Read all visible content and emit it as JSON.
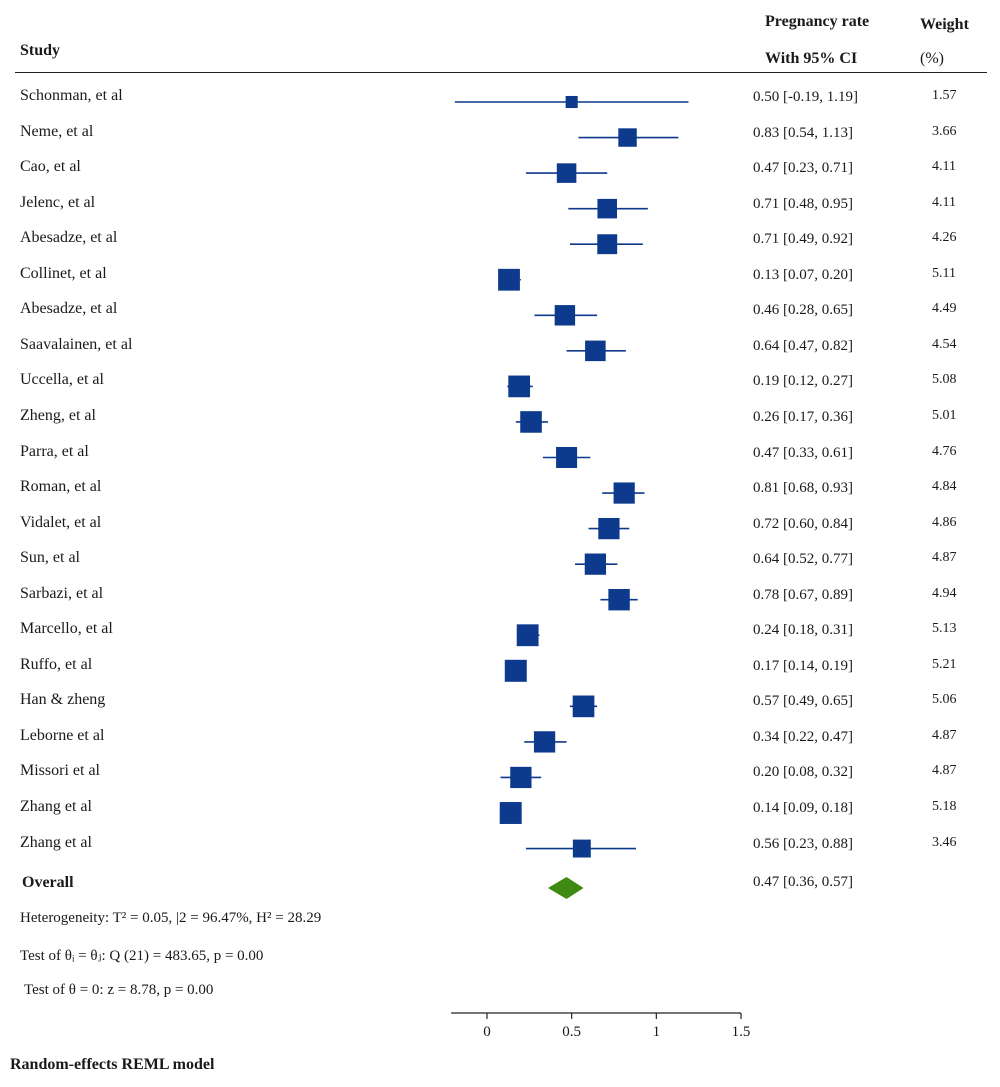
{
  "header": {
    "study": "Study",
    "rate": "Pregnancy rate",
    "ci": "With 95% CI",
    "weight": "Weight",
    "weight_unit": "(%)"
  },
  "rows": [
    {
      "study": "Schonman, et al",
      "est": "0.50 [-0.19, 1.19]",
      "weight": "1.57"
    },
    {
      "study": "Neme, et al",
      "est": "0.83 [0.54, 1.13]",
      "weight": "3.66"
    },
    {
      "study": "Cao, et al",
      "est": "0.47 [0.23, 0.71]",
      "weight": "4.11"
    },
    {
      "study": "Jelenc, et al",
      "est": "0.71 [0.48, 0.95]",
      "weight": "4.11"
    },
    {
      "study": "Abesadze, et al",
      "est": "0.71 [0.49, 0.92]",
      "weight": "4.26"
    },
    {
      "study": "Collinet, et al",
      "est": "0.13 [0.07, 0.20]",
      "weight": "5.11"
    },
    {
      "study": "Abesadze, et al",
      "est": "0.46 [0.28, 0.65]",
      "weight": "4.49"
    },
    {
      "study": "Saavalainen, et al",
      "est": "0.64 [0.47, 0.82]",
      "weight": "4.54"
    },
    {
      "study": "Uccella, et al",
      "est": "0.19 [0.12, 0.27]",
      "weight": "5.08"
    },
    {
      "study": "Zheng, et al",
      "est": "0.26 [0.17, 0.36]",
      "weight": "5.01"
    },
    {
      "study": "Parra, et al",
      "est": "0.47 [0.33, 0.61]",
      "weight": "4.76"
    },
    {
      "study": "Roman, et al",
      "est": "0.81 [0.68, 0.93]",
      "weight": "4.84"
    },
    {
      "study": "Vidalet, et al",
      "est": "0.72 [0.60, 0.84]",
      "weight": "4.86"
    },
    {
      "study": "Sun, et al",
      "est": "0.64 [0.52, 0.77]",
      "weight": "4.87"
    },
    {
      "study": "Sarbazi, et al",
      "est": "0.78 [0.67, 0.89]",
      "weight": "4.94"
    },
    {
      "study": "Marcello, et al",
      "est": "0.24 [0.18, 0.31]",
      "weight": "5.13"
    },
    {
      "study": "Ruffo, et al",
      "est": "0.17 [0.14, 0.19]",
      "weight": "5.21"
    },
    {
      "study": "Han & zheng",
      "est": "0.57 [0.49, 0.65]",
      "weight": "5.06"
    },
    {
      "study": "Leborne et al",
      "est": "0.34 [0.22, 0.47]",
      "weight": "4.87"
    },
    {
      "study": "Missori et al",
      "est": "0.20 [0.08, 0.32]",
      "weight": "4.87"
    },
    {
      "study": "Zhang et al",
      "est": "0.14 [0.09, 0.18]",
      "weight": "5.18"
    },
    {
      "study": "Zhang et al",
      "est": "0.56 [0.23, 0.88]",
      "weight": "3.46"
    }
  ],
  "overall": {
    "label": "Overall",
    "est": "0.47 [0.36, 0.57]"
  },
  "stats": {
    "heterogeneity": "Heterogeneity: T² = 0.05, |2 = 96.47%, H² = 28.29",
    "q_test": "Test of θᵢ = θⱼ: Q (21) = 483.65, p = 0.00",
    "z_test": "Test of θ = 0: z = 8.78, p = 0.00"
  },
  "footer": "Random-effects REML model",
  "colors": {
    "study_marker": "#0d3a8c",
    "overall_diamond": "#3f8a12",
    "axis": "#222222"
  },
  "chart_data": {
    "type": "forest",
    "xlim": [
      -0.2,
      1.5
    ],
    "xticks": [
      0,
      0.5,
      1,
      1.5
    ],
    "xtick_labels": [
      "0",
      "0.5",
      "1",
      "1.5"
    ],
    "studies": [
      {
        "name": "Schonman, et al",
        "estimate": 0.5,
        "lower": -0.19,
        "upper": 1.19,
        "weight": 1.57
      },
      {
        "name": "Neme, et al",
        "estimate": 0.83,
        "lower": 0.54,
        "upper": 1.13,
        "weight": 3.66
      },
      {
        "name": "Cao, et al",
        "estimate": 0.47,
        "lower": 0.23,
        "upper": 0.71,
        "weight": 4.11
      },
      {
        "name": "Jelenc, et al",
        "estimate": 0.71,
        "lower": 0.48,
        "upper": 0.95,
        "weight": 4.11
      },
      {
        "name": "Abesadze, et al",
        "estimate": 0.71,
        "lower": 0.49,
        "upper": 0.92,
        "weight": 4.26
      },
      {
        "name": "Collinet, et al",
        "estimate": 0.13,
        "lower": 0.07,
        "upper": 0.2,
        "weight": 5.11
      },
      {
        "name": "Abesadze, et al",
        "estimate": 0.46,
        "lower": 0.28,
        "upper": 0.65,
        "weight": 4.49
      },
      {
        "name": "Saavalainen, et al",
        "estimate": 0.64,
        "lower": 0.47,
        "upper": 0.82,
        "weight": 4.54
      },
      {
        "name": "Uccella, et al",
        "estimate": 0.19,
        "lower": 0.12,
        "upper": 0.27,
        "weight": 5.08
      },
      {
        "name": "Zheng, et al",
        "estimate": 0.26,
        "lower": 0.17,
        "upper": 0.36,
        "weight": 5.01
      },
      {
        "name": "Parra, et al",
        "estimate": 0.47,
        "lower": 0.33,
        "upper": 0.61,
        "weight": 4.76
      },
      {
        "name": "Roman, et al",
        "estimate": 0.81,
        "lower": 0.68,
        "upper": 0.93,
        "weight": 4.84
      },
      {
        "name": "Vidalet, et al",
        "estimate": 0.72,
        "lower": 0.6,
        "upper": 0.84,
        "weight": 4.86
      },
      {
        "name": "Sun, et al",
        "estimate": 0.64,
        "lower": 0.52,
        "upper": 0.77,
        "weight": 4.87
      },
      {
        "name": "Sarbazi, et al",
        "estimate": 0.78,
        "lower": 0.67,
        "upper": 0.89,
        "weight": 4.94
      },
      {
        "name": "Marcello, et al",
        "estimate": 0.24,
        "lower": 0.18,
        "upper": 0.31,
        "weight": 5.13
      },
      {
        "name": "Ruffo, et al",
        "estimate": 0.17,
        "lower": 0.14,
        "upper": 0.19,
        "weight": 5.21
      },
      {
        "name": "Han & zheng",
        "estimate": 0.57,
        "lower": 0.49,
        "upper": 0.65,
        "weight": 5.06
      },
      {
        "name": "Leborne et al",
        "estimate": 0.34,
        "lower": 0.22,
        "upper": 0.47,
        "weight": 4.87
      },
      {
        "name": "Missori et al",
        "estimate": 0.2,
        "lower": 0.08,
        "upper": 0.32,
        "weight": 4.87
      },
      {
        "name": "Zhang et al",
        "estimate": 0.14,
        "lower": 0.09,
        "upper": 0.18,
        "weight": 5.18
      },
      {
        "name": "Zhang et al",
        "estimate": 0.56,
        "lower": 0.23,
        "upper": 0.88,
        "weight": 3.46
      }
    ],
    "overall": {
      "estimate": 0.47,
      "lower": 0.36,
      "upper": 0.57
    }
  }
}
